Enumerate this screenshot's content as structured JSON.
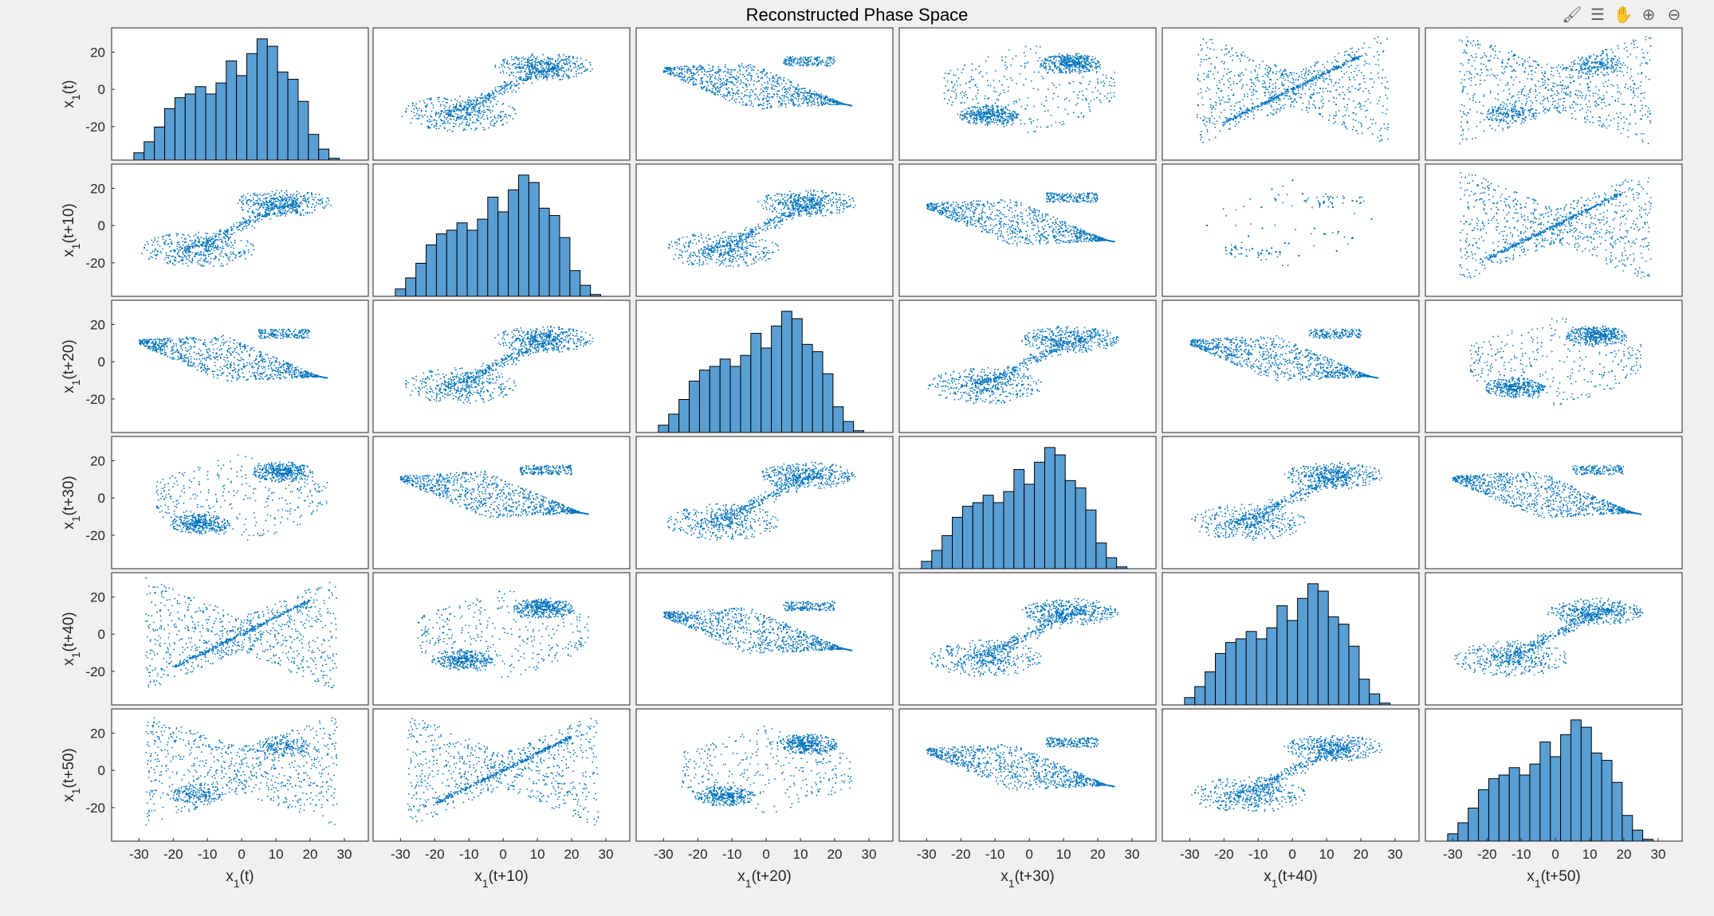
{
  "figure": {
    "title": "Reconstructed Phase Space"
  },
  "toolbar": [
    {
      "name": "brush-icon",
      "glyph": "🖌"
    },
    {
      "name": "legend-icon",
      "glyph": "☰"
    },
    {
      "name": "pan-hand-icon",
      "glyph": "✋"
    },
    {
      "name": "zoom-in-icon",
      "glyph": "⊕"
    },
    {
      "name": "zoom-out-icon",
      "glyph": "⊖"
    }
  ],
  "colors": {
    "scatter": "#0072BD",
    "bar_fill": "#5A9FD4",
    "bar_edge": "#000000",
    "axes_bg": "#ffffff",
    "axes_edge": "#262626"
  },
  "chart_data": {
    "type": "scatter-matrix",
    "title": "Reconstructed Phase Space",
    "variables": [
      {
        "label": "x",
        "sub": "1",
        "suffix": "(t)"
      },
      {
        "label": "x",
        "sub": "1",
        "suffix": "(t+10)"
      },
      {
        "label": "x",
        "sub": "1",
        "suffix": "(t+20)"
      },
      {
        "label": "x",
        "sub": "1",
        "suffix": "(t+30)"
      },
      {
        "label": "x",
        "sub": "1",
        "suffix": "(t+40)"
      },
      {
        "label": "x",
        "sub": "1",
        "suffix": "(t+50)"
      }
    ],
    "xlim": [
      -38,
      37
    ],
    "ylim": [
      -38,
      33
    ],
    "xticks": [
      -30,
      -20,
      -10,
      0,
      10,
      20,
      30
    ],
    "yticks": [
      -20,
      0,
      20
    ],
    "histogram": {
      "bin_centers": [
        -30,
        -27,
        -24,
        -21,
        -18,
        -15,
        -12,
        -9,
        -6,
        -3,
        0,
        3,
        6,
        9,
        12,
        15,
        18,
        21,
        24,
        27
      ],
      "counts": [
        2,
        5,
        9,
        14,
        17,
        18,
        20,
        18,
        21,
        27,
        23,
        29,
        33,
        31,
        24,
        22,
        16,
        7,
        3,
        0.5
      ],
      "ymax": 36
    },
    "pair_patterns": [
      [
        0,
        1,
        2,
        3,
        4,
        5
      ],
      [
        1,
        0,
        1,
        2,
        3,
        4
      ],
      [
        2,
        1,
        0,
        1,
        2,
        3
      ],
      [
        3,
        2,
        1,
        0,
        1,
        2
      ],
      [
        4,
        3,
        2,
        1,
        0,
        1
      ],
      [
        5,
        4,
        3,
        2,
        1,
        0
      ]
    ],
    "grid": false
  }
}
